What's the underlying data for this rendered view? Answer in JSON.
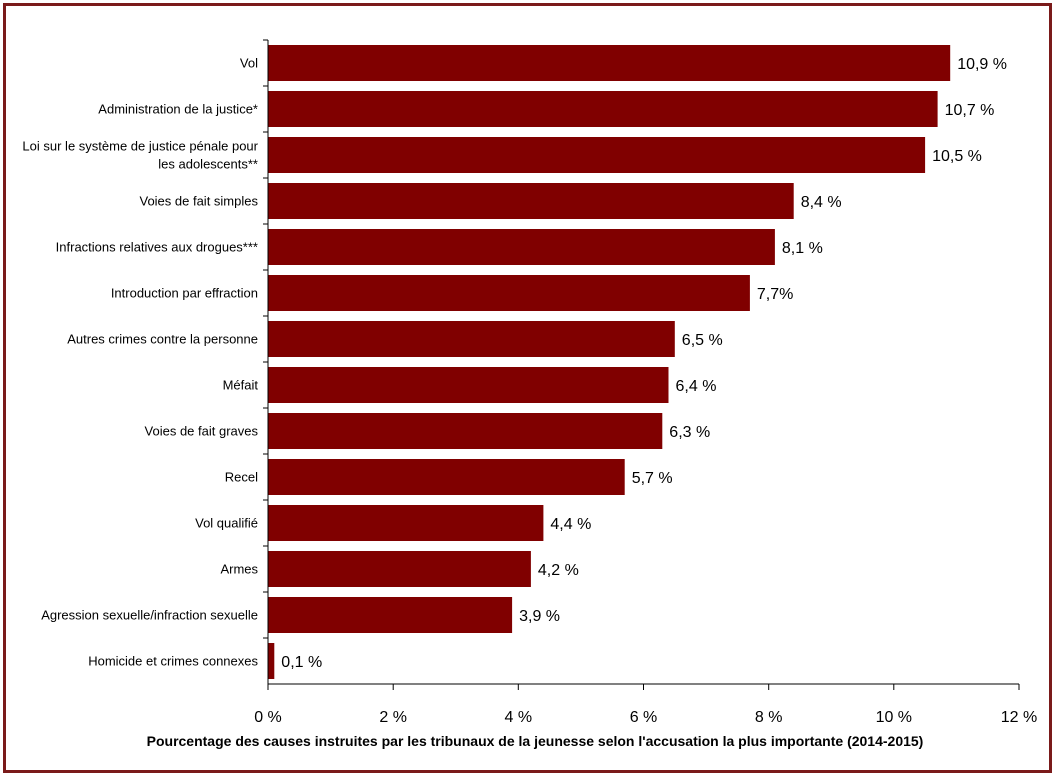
{
  "chart_data": {
    "type": "bar",
    "orientation": "horizontal",
    "categories": [
      "Vol",
      "Administration de la justice*",
      "Loi sur le système de justice pénale pour les adolescents**",
      "Voies de fait simples",
      "Infractions relatives aux drogues***",
      "Introduction par effraction",
      "Autres crimes contre la personne",
      "Méfait",
      "Voies de fait graves",
      "Recel",
      "Vol qualifié",
      "Armes",
      "Agression sexuelle/infraction sexuelle",
      "Homicide et crimes connexes"
    ],
    "category_lines": [
      [
        "Vol"
      ],
      [
        "Administration de la justice*"
      ],
      [
        "Loi sur le système de justice pénale pour",
        "les adolescents**"
      ],
      [
        "Voies de fait simples"
      ],
      [
        "Infractions relatives aux drogues***"
      ],
      [
        "Introduction par effraction"
      ],
      [
        "Autres crimes contre la personne"
      ],
      [
        "Méfait"
      ],
      [
        "Voies de fait graves"
      ],
      [
        "Recel"
      ],
      [
        "Vol qualifié"
      ],
      [
        "Armes"
      ],
      [
        "Agression sexuelle/infraction sexuelle"
      ],
      [
        "Homicide et crimes connexes"
      ]
    ],
    "values": [
      10.9,
      10.7,
      10.5,
      8.4,
      8.1,
      7.7,
      6.5,
      6.4,
      6.3,
      5.7,
      4.4,
      4.2,
      3.9,
      0.1
    ],
    "value_labels": [
      "10,9 %",
      "10,7 %",
      "10,5 %",
      "8,4 %",
      "8,1 %",
      "7,7%",
      "6,5 %",
      "6,4 %",
      "6,3 %",
      "5,7 %",
      "4,4 %",
      "4,2 %",
      "3,9 %",
      "0,1 %"
    ],
    "xlim": [
      0,
      12
    ],
    "xticks": [
      0,
      2,
      4,
      6,
      8,
      10,
      12
    ],
    "xtick_labels": [
      "0 %",
      "2 %",
      "4 %",
      "6 %",
      "8 %",
      "10 %",
      "12 %"
    ],
    "xlabel": "Pourcentage des causes instruites par les tribunaux de la jeunesse selon l'accusation la plus importante (2014-2015)",
    "ylabel": "",
    "title": "",
    "grid": false,
    "bar_color": "#800000",
    "border_color": "#7a1a1a"
  }
}
